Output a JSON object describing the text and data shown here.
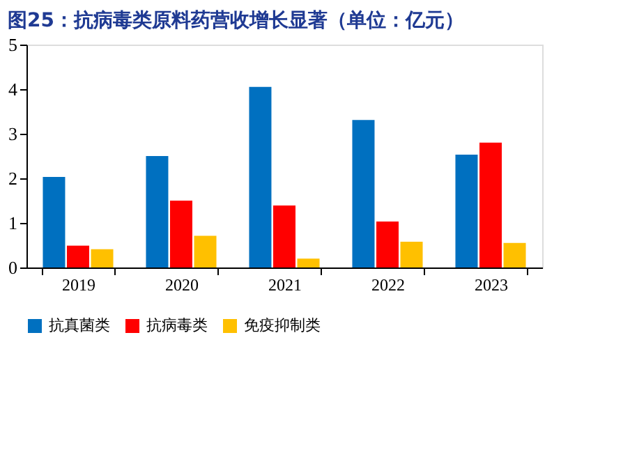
{
  "chart_data": {
    "type": "bar",
    "title": "图25：抗病毒类原料药营收增长显著（单位：亿元）",
    "categories": [
      "2019",
      "2020",
      "2021",
      "2022",
      "2023"
    ],
    "series": [
      {
        "name": "抗真菌类",
        "color": "#0070c0",
        "values": [
          2.03,
          2.5,
          4.05,
          3.31,
          2.53
        ]
      },
      {
        "name": "抗病毒类",
        "color": "#ff0000",
        "values": [
          0.49,
          1.5,
          1.39,
          1.03,
          2.8
        ]
      },
      {
        "name": "免疫抑制类",
        "color": "#ffc000",
        "values": [
          0.41,
          0.71,
          0.2,
          0.58,
          0.55
        ]
      }
    ],
    "ylim": [
      0,
      5
    ],
    "yticks": [
      0,
      1,
      2,
      3,
      4,
      5
    ],
    "grid": false,
    "legend": "bottom"
  }
}
